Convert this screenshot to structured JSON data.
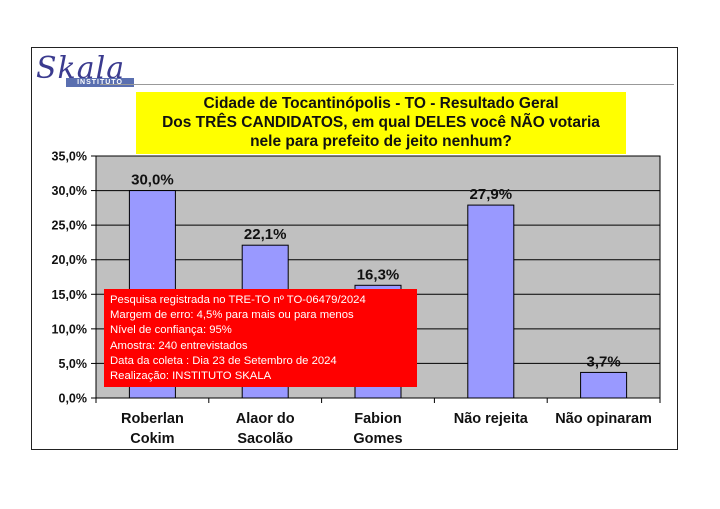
{
  "logo": {
    "word": "Skala",
    "sub": "INSTITUTO"
  },
  "title_lines": [
    "Cidade de Tocantinópolis - TO - Resultado Geral",
    "Dos TRÊS CANDIDATOS, em qual DELES você NÃO votaria",
    "nele para prefeito de jeito nenhum?"
  ],
  "notice_lines": [
    "Pesquisa registrada no TRE-TO nº TO-06479/2024",
    "Margem de erro: 4,5% para mais ou para menos",
    "Nível de confiança: 95%",
    "Amostra: 240 entrevistados",
    "Data da coleta : Dia 23 de Setembro de 2024",
    "Realização: INSTITUTO SKALA"
  ],
  "colors": {
    "bar": "#9999ff",
    "plot_bg": "#c0c0c0",
    "title_bg": "#ffff00",
    "notice_bg": "#ff0000"
  },
  "chart_data": {
    "type": "bar",
    "categories": [
      [
        "Roberlan",
        "Cokim"
      ],
      [
        "Alaor do",
        "Sacolão"
      ],
      [
        "Fabion",
        "Gomes"
      ],
      [
        "Não rejeita"
      ],
      [
        "Não opinaram"
      ]
    ],
    "values": [
      30.0,
      22.1,
      16.3,
      27.9,
      3.7
    ],
    "data_labels": [
      "30,0%",
      "22,1%",
      "16,3%",
      "27,9%",
      "3,7%"
    ],
    "yticks": [
      0,
      5,
      10,
      15,
      20,
      25,
      30,
      35
    ],
    "ytick_labels": [
      "0,0%",
      "5,0%",
      "10,0%",
      "15,0%",
      "20,0%",
      "25,0%",
      "30,0%",
      "35,0%"
    ],
    "ylim": [
      0,
      35
    ],
    "grid": true,
    "legend": "none"
  }
}
